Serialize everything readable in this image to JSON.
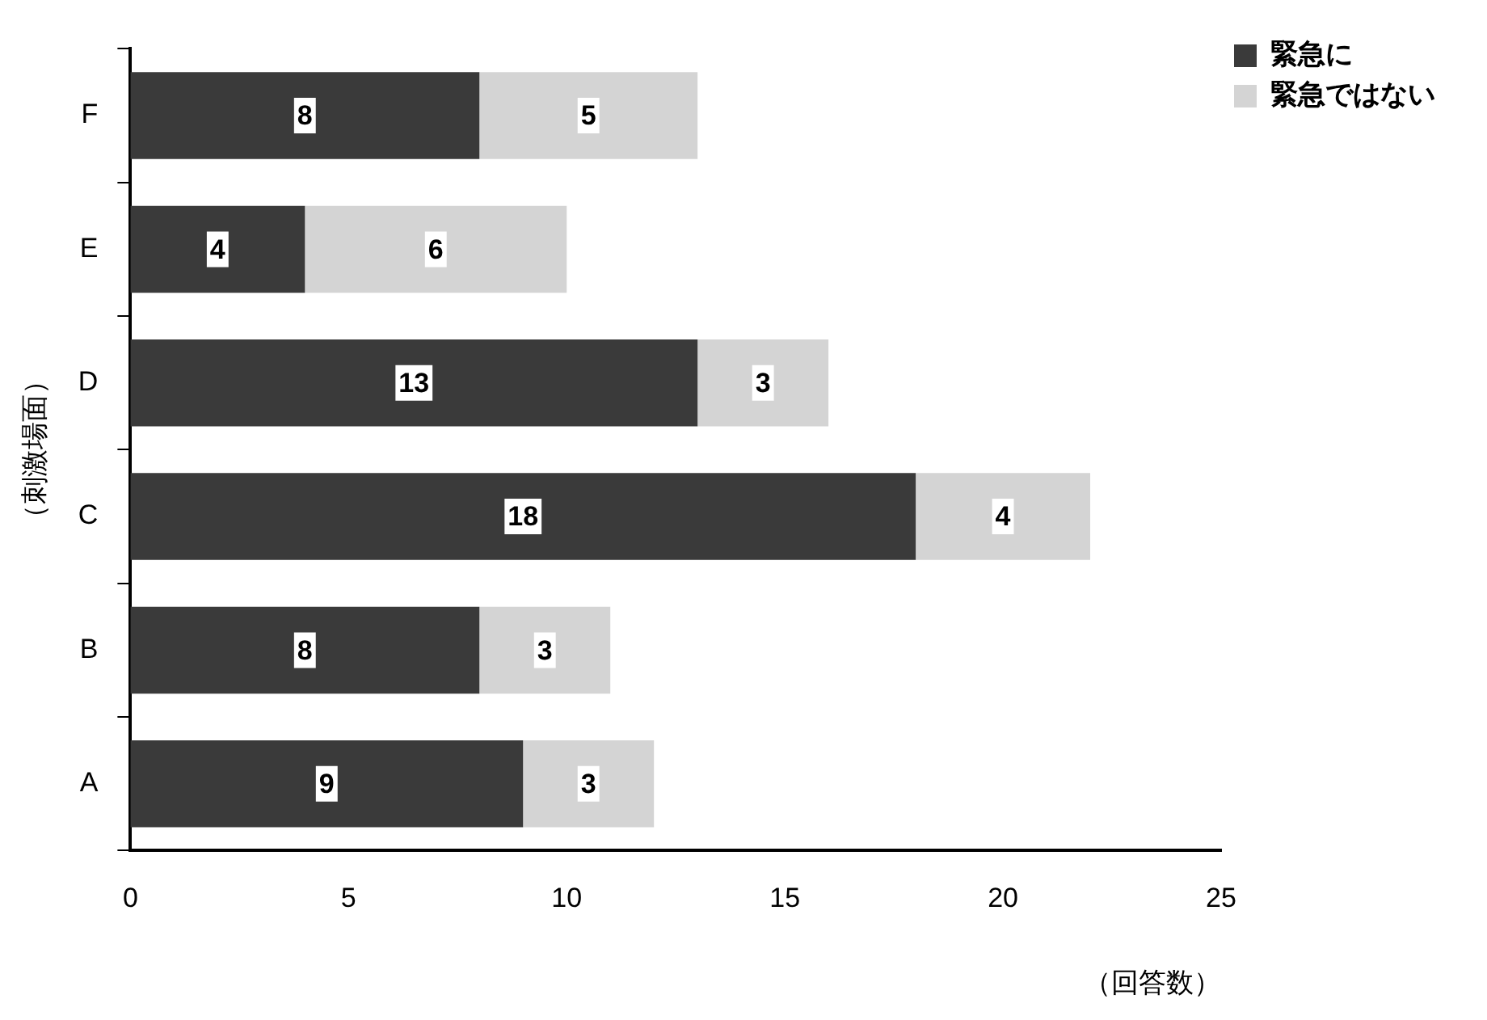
{
  "chart_data": {
    "type": "bar",
    "orientation": "horizontal",
    "stacked": true,
    "categories": [
      "F",
      "E",
      "D",
      "C",
      "B",
      "A"
    ],
    "series": [
      {
        "name": "緊急に",
        "color": "#3a3a3a",
        "values": [
          8,
          4,
          13,
          18,
          8,
          9
        ]
      },
      {
        "name": "緊急ではない",
        "color": "#d4d4d4",
        "values": [
          5,
          6,
          3,
          4,
          3,
          3
        ]
      }
    ],
    "xlim": [
      0,
      25
    ],
    "xticks": [
      0,
      5,
      10,
      15,
      20,
      25
    ],
    "xlabel": "（回答数）",
    "ylabel": "（刺激場面）",
    "data_labels": true,
    "grid": false,
    "legend": "top right"
  }
}
